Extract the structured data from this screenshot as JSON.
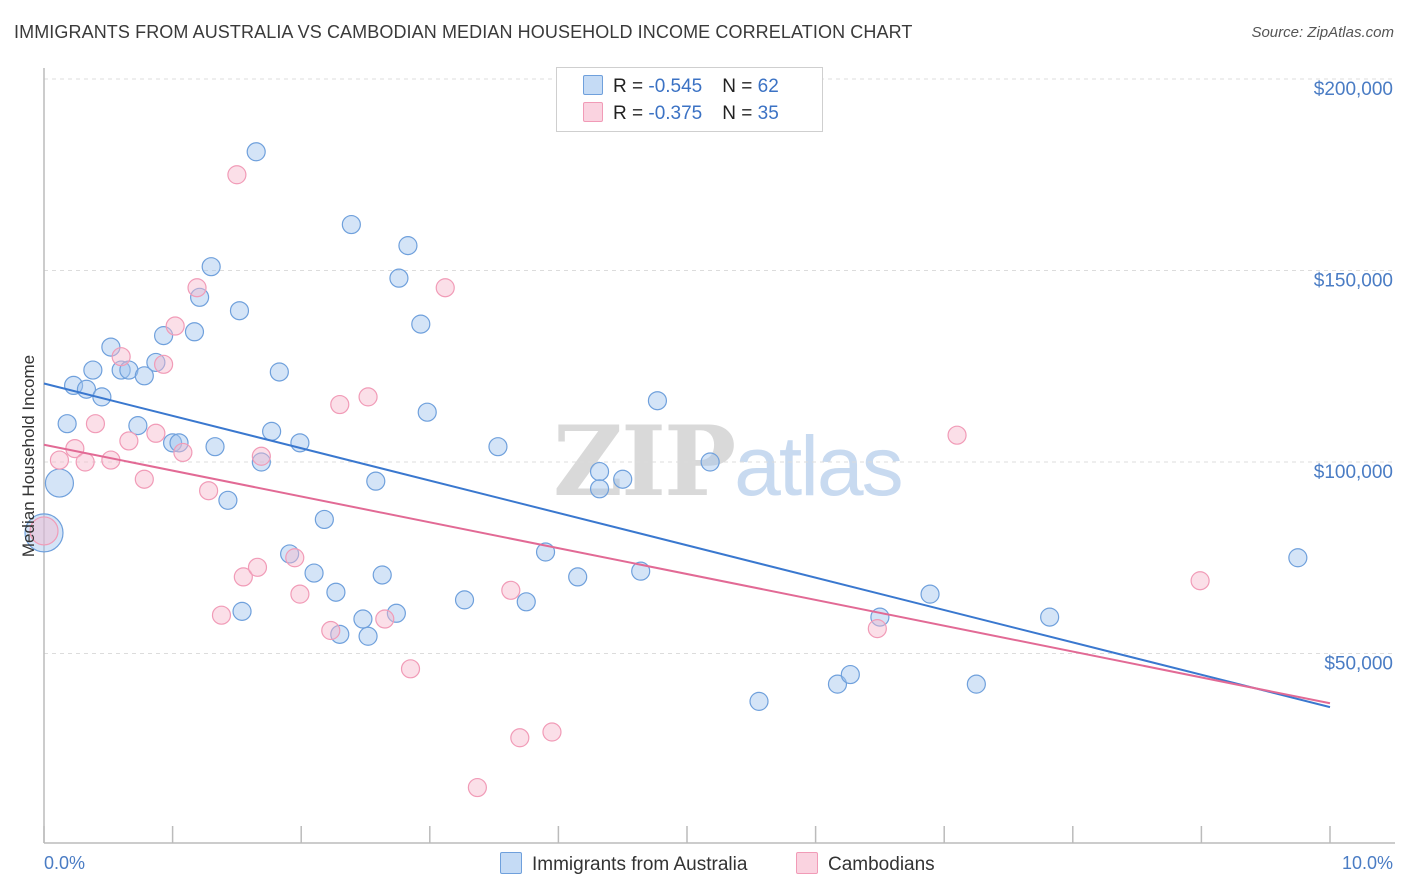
{
  "header": {
    "title": "IMMIGRANTS FROM AUSTRALIA VS CAMBODIAN MEDIAN HOUSEHOLD INCOME CORRELATION CHART",
    "source": "Source: ZipAtlas.com"
  },
  "watermark": {
    "zip": "ZIP",
    "atlas": "atlas"
  },
  "legend": {
    "rows": [
      {
        "r_label": "R = ",
        "r_value": "-0.545",
        "n_label": "N = ",
        "n_value": "62"
      },
      {
        "r_label": "R = ",
        "r_value": "-0.375",
        "n_label": "N = ",
        "n_value": "35"
      }
    ]
  },
  "chart_data": {
    "type": "scatter",
    "title": "IMMIGRANTS FROM AUSTRALIA VS CAMBODIAN MEDIAN HOUSEHOLD INCOME CORRELATION CHART",
    "xlabel": "",
    "ylabel": "Median Household Income",
    "xlim": [
      0,
      10
    ],
    "ylim": [
      0,
      210000
    ],
    "x_tick_labels": [
      "0.0%",
      "10.0%"
    ],
    "y_ticks": [
      {
        "value": 50000,
        "label": "$50,000"
      },
      {
        "value": 100000,
        "label": "$100,000"
      },
      {
        "value": 150000,
        "label": "$150,000"
      },
      {
        "value": 200000,
        "label": "$200,000"
      }
    ],
    "colors": {
      "australia": "#6fa0dc",
      "cambodians": "#f19bb7",
      "australia_line": "#3a78cf",
      "cambodians_line": "#e26a95"
    },
    "series": [
      {
        "name": "Immigrants from Australia",
        "color": "#6fa0dc",
        "trend": {
          "x0": 0.0,
          "y0": 120500,
          "x1": 10.0,
          "y1": 36000
        },
        "points": [
          {
            "x": 0.0,
            "y": 81500,
            "s": 3
          },
          {
            "x": 0.12,
            "y": 94500,
            "s": 2
          },
          {
            "x": 0.18,
            "y": 110000
          },
          {
            "x": 0.23,
            "y": 120000
          },
          {
            "x": 0.33,
            "y": 119000
          },
          {
            "x": 0.38,
            "y": 124000
          },
          {
            "x": 0.45,
            "y": 117000
          },
          {
            "x": 0.52,
            "y": 130000
          },
          {
            "x": 0.6,
            "y": 124000
          },
          {
            "x": 0.66,
            "y": 124000
          },
          {
            "x": 0.73,
            "y": 109500
          },
          {
            "x": 0.78,
            "y": 122500
          },
          {
            "x": 0.87,
            "y": 126000
          },
          {
            "x": 0.93,
            "y": 133000
          },
          {
            "x": 1.0,
            "y": 105000
          },
          {
            "x": 1.05,
            "y": 105000
          },
          {
            "x": 1.17,
            "y": 134000
          },
          {
            "x": 1.21,
            "y": 143000
          },
          {
            "x": 1.3,
            "y": 151000
          },
          {
            "x": 1.33,
            "y": 104000
          },
          {
            "x": 1.43,
            "y": 90000
          },
          {
            "x": 1.52,
            "y": 139500
          },
          {
            "x": 1.54,
            "y": 61000
          },
          {
            "x": 1.65,
            "y": 181000
          },
          {
            "x": 1.69,
            "y": 100000
          },
          {
            "x": 1.77,
            "y": 108000
          },
          {
            "x": 1.83,
            "y": 123500
          },
          {
            "x": 1.91,
            "y": 76000
          },
          {
            "x": 1.99,
            "y": 105000
          },
          {
            "x": 2.1,
            "y": 71000
          },
          {
            "x": 2.18,
            "y": 85000
          },
          {
            "x": 2.27,
            "y": 66000
          },
          {
            "x": 2.3,
            "y": 55000
          },
          {
            "x": 2.39,
            "y": 162000
          },
          {
            "x": 2.48,
            "y": 59000
          },
          {
            "x": 2.52,
            "y": 54500
          },
          {
            "x": 2.58,
            "y": 95000
          },
          {
            "x": 2.63,
            "y": 70500
          },
          {
            "x": 2.74,
            "y": 60500
          },
          {
            "x": 2.76,
            "y": 148000
          },
          {
            "x": 2.83,
            "y": 156500
          },
          {
            "x": 2.93,
            "y": 136000
          },
          {
            "x": 2.98,
            "y": 113000
          },
          {
            "x": 3.27,
            "y": 64000
          },
          {
            "x": 3.53,
            "y": 104000
          },
          {
            "x": 3.75,
            "y": 63500
          },
          {
            "x": 3.9,
            "y": 76500
          },
          {
            "x": 4.15,
            "y": 70000
          },
          {
            "x": 4.32,
            "y": 97500
          },
          {
            "x": 4.32,
            "y": 93000
          },
          {
            "x": 4.5,
            "y": 95500
          },
          {
            "x": 4.64,
            "y": 71500
          },
          {
            "x": 4.77,
            "y": 116000
          },
          {
            "x": 5.18,
            "y": 100000
          },
          {
            "x": 5.56,
            "y": 37500
          },
          {
            "x": 6.17,
            "y": 42000
          },
          {
            "x": 6.27,
            "y": 44500
          },
          {
            "x": 6.5,
            "y": 59500
          },
          {
            "x": 6.89,
            "y": 65500
          },
          {
            "x": 7.25,
            "y": 42000
          },
          {
            "x": 7.82,
            "y": 59500
          },
          {
            "x": 9.75,
            "y": 75000
          }
        ]
      },
      {
        "name": "Cambodians",
        "color": "#f19bb7",
        "trend": {
          "x0": 0.0,
          "y0": 104500,
          "x1": 10.0,
          "y1": 37000
        },
        "points": [
          {
            "x": 0.0,
            "y": 82000,
            "s": 2
          },
          {
            "x": 0.12,
            "y": 100500
          },
          {
            "x": 0.24,
            "y": 103500
          },
          {
            "x": 0.32,
            "y": 100000
          },
          {
            "x": 0.4,
            "y": 110000
          },
          {
            "x": 0.52,
            "y": 100500
          },
          {
            "x": 0.6,
            "y": 127500
          },
          {
            "x": 0.66,
            "y": 105500
          },
          {
            "x": 0.78,
            "y": 95500
          },
          {
            "x": 0.87,
            "y": 107500
          },
          {
            "x": 0.93,
            "y": 125500
          },
          {
            "x": 1.02,
            "y": 135500
          },
          {
            "x": 1.08,
            "y": 102500
          },
          {
            "x": 1.19,
            "y": 145500
          },
          {
            "x": 1.28,
            "y": 92500
          },
          {
            "x": 1.38,
            "y": 60000
          },
          {
            "x": 1.5,
            "y": 175000
          },
          {
            "x": 1.55,
            "y": 70000
          },
          {
            "x": 1.66,
            "y": 72500
          },
          {
            "x": 1.69,
            "y": 101500
          },
          {
            "x": 1.95,
            "y": 75000
          },
          {
            "x": 1.99,
            "y": 65500
          },
          {
            "x": 2.23,
            "y": 56000
          },
          {
            "x": 2.3,
            "y": 115000
          },
          {
            "x": 2.52,
            "y": 117000
          },
          {
            "x": 2.65,
            "y": 59000
          },
          {
            "x": 2.85,
            "y": 46000
          },
          {
            "x": 3.12,
            "y": 145500
          },
          {
            "x": 3.37,
            "y": 15000
          },
          {
            "x": 3.63,
            "y": 66500
          },
          {
            "x": 3.7,
            "y": 28000
          },
          {
            "x": 3.95,
            "y": 29500
          },
          {
            "x": 6.48,
            "y": 56500
          },
          {
            "x": 7.1,
            "y": 107000
          },
          {
            "x": 8.99,
            "y": 69000
          }
        ]
      }
    ]
  }
}
